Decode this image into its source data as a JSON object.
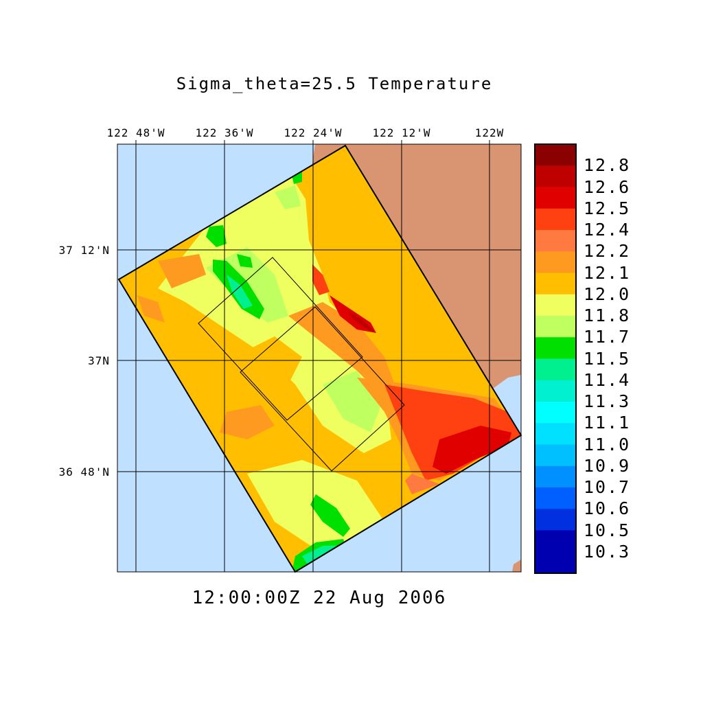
{
  "title": "Sigma_theta=25.5 Temperature",
  "timestamp": "12:00:00Z  22 Aug 2006",
  "lon_labels": [
    "122 48'W",
    "122 36'W",
    "122 24'W",
    "122 12'W",
    "122W"
  ],
  "lat_labels": [
    "37 12'N",
    "37N",
    "36 48'N"
  ],
  "colorbar_labels": [
    "12.8",
    "12.6",
    "12.5",
    "12.4",
    "12.2",
    "12.1",
    "12.0",
    "11.8",
    "11.7",
    "11.5",
    "11.4",
    "11.3",
    "11.1",
    "11.0",
    "10.9",
    "10.7",
    "10.6",
    "10.5",
    "10.3"
  ],
  "colorbar_colors": [
    "#8b0000",
    "#bf0000",
    "#e00000",
    "#ff4010",
    "#ff7a40",
    "#ff9a20",
    "#ffbf00",
    "#f0ff60",
    "#c0ff60",
    "#00e000",
    "#00f090",
    "#00f0d0",
    "#00ffff",
    "#00e0ff",
    "#00c0ff",
    "#0090ff",
    "#0060ff",
    "#0030e0",
    "#0000b0"
  ],
  "colors": {
    "ocean": "#c0e0ff",
    "land": "#d99472",
    "field_base": "#ffbf00"
  }
}
